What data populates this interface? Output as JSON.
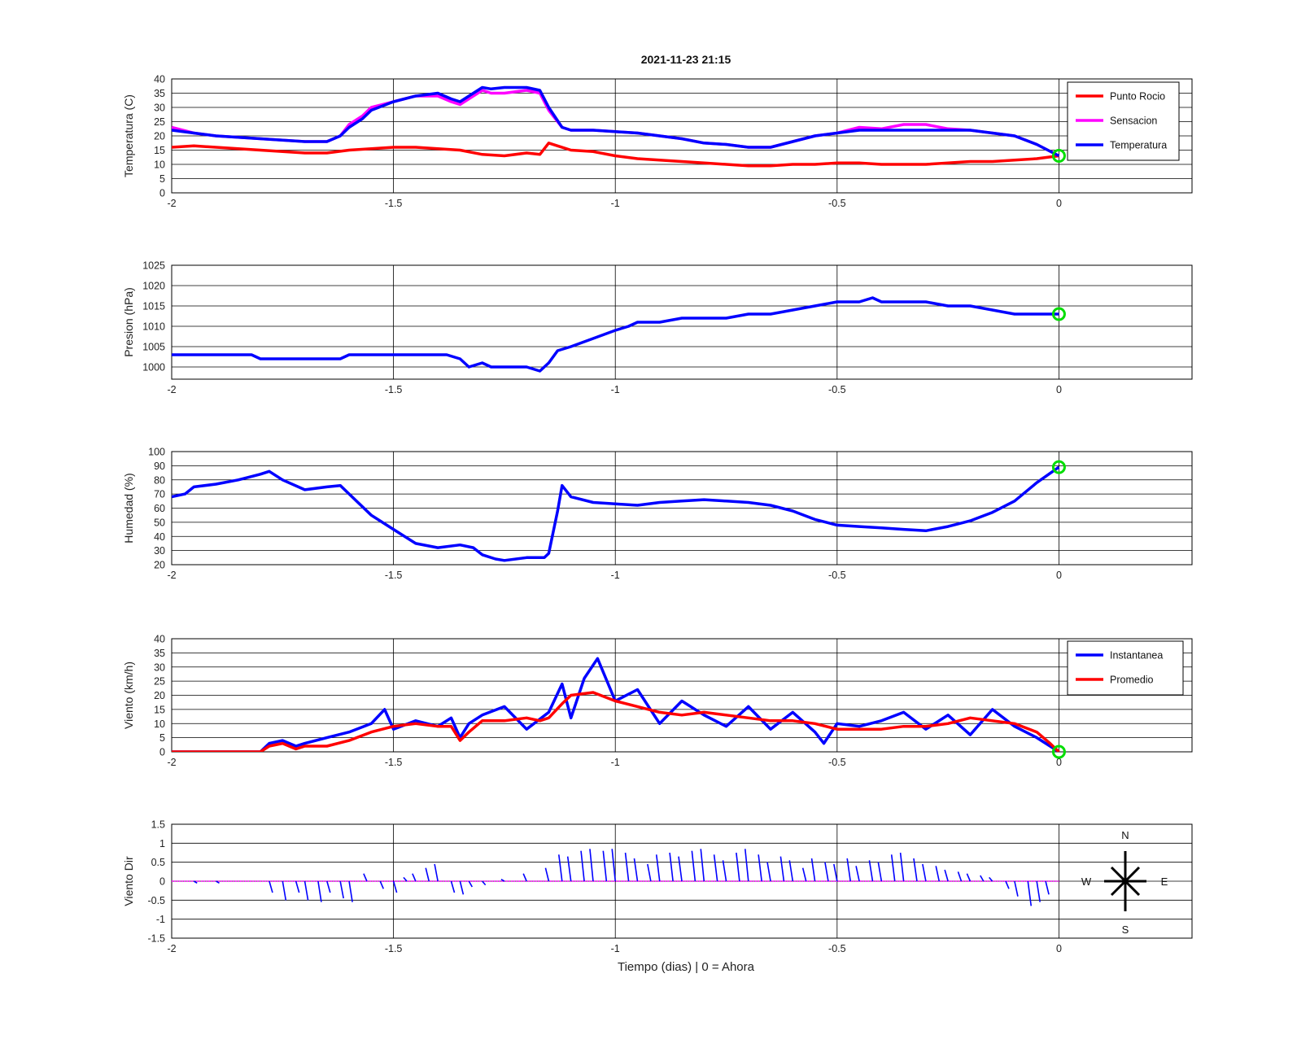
{
  "figure": {
    "title": "2021-11-23 21:15",
    "xlabel": "Tiempo (dias) | 0 = Ahora"
  },
  "colors": {
    "blue": "#0000ff",
    "red": "#ff0000",
    "magenta": "#ff00ff",
    "green": "#00dd00",
    "grid": "#000000"
  },
  "chart_data": [
    {
      "type": "line",
      "ylabel": "Temperatura (C)",
      "xlim": [
        -2,
        0.3
      ],
      "ylim": [
        0,
        40
      ],
      "xticks": [
        -2,
        -1.5,
        -1,
        -0.5,
        0
      ],
      "yticks": [
        0,
        5,
        10,
        15,
        20,
        25,
        30,
        35,
        40
      ],
      "grid": true,
      "legend_position": "top-right",
      "current_marker": {
        "x": 0,
        "y": 13
      },
      "series": [
        {
          "name": "Punto Rocio",
          "color": "#ff0000",
          "x": [
            -2,
            -1.95,
            -1.9,
            -1.85,
            -1.8,
            -1.75,
            -1.7,
            -1.65,
            -1.6,
            -1.55,
            -1.5,
            -1.45,
            -1.4,
            -1.35,
            -1.3,
            -1.25,
            -1.2,
            -1.17,
            -1.15,
            -1.13,
            -1.1,
            -1.05,
            -1.0,
            -0.95,
            -0.9,
            -0.85,
            -0.8,
            -0.75,
            -0.7,
            -0.65,
            -0.6,
            -0.55,
            -0.5,
            -0.45,
            -0.4,
            -0.35,
            -0.3,
            -0.25,
            -0.2,
            -0.15,
            -0.1,
            -0.05,
            0
          ],
          "y": [
            16,
            16.5,
            16,
            15.5,
            15,
            14.5,
            14,
            14,
            15,
            15.5,
            16,
            16,
            15.5,
            15,
            13.5,
            13,
            14,
            13.5,
            17.5,
            16.5,
            15,
            14.5,
            13,
            12,
            11.5,
            11,
            10.5,
            10,
            9.5,
            9.5,
            10,
            10,
            10.5,
            10.5,
            10,
            10,
            10,
            10.5,
            11,
            11,
            11.5,
            12,
            13
          ]
        },
        {
          "name": "Sensacion",
          "color": "#ff00ff",
          "x": [
            -2,
            -1.95,
            -1.9,
            -1.85,
            -1.8,
            -1.75,
            -1.7,
            -1.65,
            -1.62,
            -1.6,
            -1.57,
            -1.55,
            -1.5,
            -1.45,
            -1.4,
            -1.37,
            -1.35,
            -1.33,
            -1.3,
            -1.28,
            -1.25,
            -1.2,
            -1.17,
            -1.15,
            -1.12,
            -1.1,
            -1.05,
            -1.0,
            -0.95,
            -0.9,
            -0.85,
            -0.8,
            -0.75,
            -0.7,
            -0.65,
            -0.6,
            -0.55,
            -0.5,
            -0.45,
            -0.4,
            -0.35,
            -0.3,
            -0.25,
            -0.2,
            -0.15,
            -0.1,
            -0.05,
            0
          ],
          "y": [
            23,
            21,
            20,
            19.5,
            19,
            18.5,
            18,
            18,
            20,
            24,
            27,
            30,
            32,
            34,
            34,
            32,
            31,
            33,
            36,
            35,
            35,
            36,
            35,
            29,
            23,
            22,
            22,
            21.5,
            21,
            20,
            19,
            17.5,
            17,
            16,
            16,
            18,
            20,
            21,
            23,
            22.5,
            24,
            24,
            22.5,
            22,
            21,
            20,
            17,
            13
          ]
        },
        {
          "name": "Temperatura",
          "color": "#0000ff",
          "x": [
            -2,
            -1.95,
            -1.9,
            -1.85,
            -1.8,
            -1.75,
            -1.7,
            -1.65,
            -1.62,
            -1.6,
            -1.57,
            -1.55,
            -1.5,
            -1.45,
            -1.4,
            -1.37,
            -1.35,
            -1.33,
            -1.3,
            -1.28,
            -1.25,
            -1.2,
            -1.17,
            -1.15,
            -1.12,
            -1.1,
            -1.05,
            -1.0,
            -0.95,
            -0.9,
            -0.85,
            -0.8,
            -0.75,
            -0.7,
            -0.65,
            -0.6,
            -0.55,
            -0.5,
            -0.45,
            -0.4,
            -0.35,
            -0.3,
            -0.25,
            -0.2,
            -0.15,
            -0.1,
            -0.05,
            0
          ],
          "y": [
            22,
            21,
            20,
            19.5,
            19,
            18.5,
            18,
            18,
            20,
            23,
            26,
            29,
            32,
            34,
            35,
            33,
            32,
            34,
            37,
            36.5,
            37,
            37,
            36,
            30,
            23,
            22,
            22,
            21.5,
            21,
            20,
            19,
            17.5,
            17,
            16,
            16,
            18,
            20,
            21,
            22,
            22,
            22,
            22,
            22,
            22,
            21,
            20,
            17,
            13
          ]
        }
      ]
    },
    {
      "type": "line",
      "ylabel": "Presion (hPa)",
      "xlim": [
        -2,
        0.3
      ],
      "ylim": [
        997,
        1025
      ],
      "xticks": [
        -2,
        -1.5,
        -1,
        -0.5,
        0
      ],
      "yticks": [
        1000,
        1005,
        1010,
        1015,
        1020,
        1025
      ],
      "grid": true,
      "current_marker": {
        "x": 0,
        "y": 1013
      },
      "series": [
        {
          "name": "",
          "color": "#0000ff",
          "x": [
            -2,
            -1.9,
            -1.82,
            -1.8,
            -1.7,
            -1.62,
            -1.6,
            -1.52,
            -1.5,
            -1.45,
            -1.4,
            -1.38,
            -1.35,
            -1.33,
            -1.3,
            -1.28,
            -1.25,
            -1.2,
            -1.17,
            -1.15,
            -1.13,
            -1.1,
            -1.05,
            -1.0,
            -0.97,
            -0.95,
            -0.9,
            -0.85,
            -0.8,
            -0.75,
            -0.7,
            -0.65,
            -0.6,
            -0.55,
            -0.5,
            -0.45,
            -0.42,
            -0.4,
            -0.35,
            -0.3,
            -0.25,
            -0.2,
            -0.15,
            -0.1,
            -0.05,
            0
          ],
          "y": [
            1003,
            1003,
            1003,
            1002,
            1002,
            1002,
            1003,
            1003,
            1003,
            1003,
            1003,
            1003,
            1002,
            1000,
            1001,
            1000,
            1000,
            1000,
            999,
            1001,
            1004,
            1005,
            1007,
            1009,
            1010,
            1011,
            1011,
            1012,
            1012,
            1012,
            1013,
            1013,
            1014,
            1015,
            1016,
            1016,
            1017,
            1016,
            1016,
            1016,
            1015,
            1015,
            1014,
            1013,
            1013,
            1013
          ]
        }
      ]
    },
    {
      "type": "line",
      "ylabel": "Humedad (%)",
      "xlim": [
        -2,
        0.3
      ],
      "ylim": [
        20,
        100
      ],
      "xticks": [
        -2,
        -1.5,
        -1,
        -0.5,
        0
      ],
      "yticks": [
        20,
        30,
        40,
        50,
        60,
        70,
        80,
        90,
        100
      ],
      "grid": true,
      "current_marker": {
        "x": 0,
        "y": 89
      },
      "series": [
        {
          "name": "",
          "color": "#0000ff",
          "x": [
            -2,
            -1.97,
            -1.95,
            -1.9,
            -1.85,
            -1.8,
            -1.78,
            -1.75,
            -1.7,
            -1.65,
            -1.62,
            -1.6,
            -1.55,
            -1.5,
            -1.45,
            -1.4,
            -1.35,
            -1.32,
            -1.3,
            -1.27,
            -1.25,
            -1.2,
            -1.16,
            -1.15,
            -1.13,
            -1.12,
            -1.1,
            -1.05,
            -1.0,
            -0.95,
            -0.9,
            -0.85,
            -0.8,
            -0.75,
            -0.7,
            -0.65,
            -0.6,
            -0.55,
            -0.5,
            -0.45,
            -0.4,
            -0.35,
            -0.3,
            -0.25,
            -0.2,
            -0.15,
            -0.1,
            -0.05,
            0
          ],
          "y": [
            68,
            70,
            75,
            77,
            80,
            84,
            86,
            80,
            73,
            75,
            76,
            70,
            55,
            45,
            35,
            32,
            34,
            32,
            27,
            24,
            23,
            25,
            25,
            28,
            58,
            76,
            68,
            64,
            63,
            62,
            64,
            65,
            66,
            65,
            64,
            62,
            58,
            52,
            48,
            47,
            46,
            45,
            44,
            47,
            51,
            57,
            65,
            78,
            89
          ]
        }
      ]
    },
    {
      "type": "line",
      "ylabel": "Viento (km/h)",
      "xlim": [
        -2,
        0.3
      ],
      "ylim": [
        0,
        40
      ],
      "xticks": [
        -2,
        -1.5,
        -1,
        -0.5,
        0
      ],
      "yticks": [
        0,
        5,
        10,
        15,
        20,
        25,
        30,
        35,
        40
      ],
      "grid": true,
      "legend_position": "top-right",
      "current_marker": {
        "x": 0,
        "y": 0
      },
      "series": [
        {
          "name": "Instantanea",
          "color": "#0000ff",
          "x": [
            -2,
            -1.9,
            -1.8,
            -1.78,
            -1.75,
            -1.72,
            -1.7,
            -1.65,
            -1.6,
            -1.55,
            -1.52,
            -1.5,
            -1.45,
            -1.4,
            -1.37,
            -1.35,
            -1.33,
            -1.3,
            -1.25,
            -1.2,
            -1.15,
            -1.12,
            -1.1,
            -1.07,
            -1.04,
            -1.0,
            -0.95,
            -0.9,
            -0.85,
            -0.8,
            -0.75,
            -0.7,
            -0.65,
            -0.6,
            -0.55,
            -0.53,
            -0.5,
            -0.45,
            -0.4,
            -0.35,
            -0.3,
            -0.25,
            -0.2,
            -0.15,
            -0.1,
            -0.05,
            -0.02,
            0
          ],
          "y": [
            0,
            0,
            0,
            3,
            4,
            2,
            3,
            5,
            7,
            10,
            15,
            8,
            11,
            9,
            12,
            5,
            10,
            13,
            16,
            8,
            14,
            24,
            12,
            26,
            33,
            18,
            22,
            10,
            18,
            13,
            9,
            16,
            8,
            14,
            7,
            3,
            10,
            9,
            11,
            14,
            8,
            13,
            6,
            15,
            9,
            5,
            2,
            0
          ]
        },
        {
          "name": "Promedio",
          "color": "#ff0000",
          "x": [
            -2,
            -1.9,
            -1.8,
            -1.78,
            -1.75,
            -1.72,
            -1.7,
            -1.65,
            -1.6,
            -1.55,
            -1.5,
            -1.45,
            -1.4,
            -1.37,
            -1.35,
            -1.33,
            -1.3,
            -1.25,
            -1.2,
            -1.17,
            -1.15,
            -1.12,
            -1.1,
            -1.05,
            -1.0,
            -0.95,
            -0.9,
            -0.85,
            -0.8,
            -0.75,
            -0.7,
            -0.65,
            -0.6,
            -0.55,
            -0.5,
            -0.45,
            -0.4,
            -0.35,
            -0.3,
            -0.25,
            -0.2,
            -0.15,
            -0.1,
            -0.05,
            -0.02,
            0
          ],
          "y": [
            0,
            0,
            0,
            2,
            3,
            1,
            2,
            2,
            4,
            7,
            9,
            10,
            9,
            9,
            4,
            7,
            11,
            11,
            12,
            11,
            12,
            17,
            20,
            21,
            18,
            16,
            14,
            13,
            14,
            13,
            12,
            11,
            11,
            10,
            8,
            8,
            8,
            9,
            9,
            10,
            12,
            11,
            10,
            7,
            3,
            0
          ]
        }
      ]
    },
    {
      "type": "line",
      "ylabel": "Viento Dir",
      "xlim": [
        -2,
        0.3
      ],
      "ylim": [
        -1.5,
        1.5
      ],
      "xticks": [
        -2,
        -1.5,
        -1,
        -0.5,
        0
      ],
      "yticks": [
        -1.5,
        -1,
        -0.5,
        0,
        0.5,
        1,
        1.5
      ],
      "grid": true,
      "compass_labels": {
        "n": "N",
        "s": "S",
        "e": "E",
        "w": "W"
      },
      "series": [
        {
          "name": "",
          "color": "#0000ff",
          "x": [
            -1.95,
            -1.9,
            -1.78,
            -1.75,
            -1.72,
            -1.7,
            -1.67,
            -1.65,
            -1.62,
            -1.6,
            -1.56,
            -1.53,
            -1.5,
            -1.47,
            -1.45,
            -1.42,
            -1.4,
            -1.37,
            -1.35,
            -1.33,
            -1.3,
            -1.25,
            -1.2,
            -1.15,
            -1.12,
            -1.1,
            -1.07,
            -1.05,
            -1.02,
            -1.0,
            -0.97,
            -0.95,
            -0.92,
            -0.9,
            -0.87,
            -0.85,
            -0.82,
            -0.8,
            -0.77,
            -0.75,
            -0.72,
            -0.7,
            -0.67,
            -0.65,
            -0.62,
            -0.6,
            -0.57,
            -0.55,
            -0.52,
            -0.5,
            -0.47,
            -0.45,
            -0.42,
            -0.4,
            -0.37,
            -0.35,
            -0.32,
            -0.3,
            -0.27,
            -0.25,
            -0.22,
            -0.2,
            -0.17,
            -0.15,
            -0.12,
            -0.1,
            -0.07,
            -0.05,
            -0.03
          ],
          "y": [
            -0.05,
            -0.05,
            -0.3,
            -0.5,
            -0.3,
            -0.5,
            -0.55,
            -0.3,
            -0.45,
            -0.55,
            0.2,
            -0.2,
            -0.3,
            0.1,
            0.2,
            0.35,
            0.45,
            -0.3,
            -0.35,
            -0.15,
            -0.1,
            0.05,
            0.2,
            0.35,
            0.7,
            0.65,
            0.8,
            0.85,
            0.8,
            0.85,
            0.75,
            0.6,
            0.45,
            0.7,
            0.75,
            0.65,
            0.8,
            0.85,
            0.7,
            0.55,
            0.75,
            0.85,
            0.7,
            0.5,
            0.65,
            0.55,
            0.35,
            0.6,
            0.5,
            0.45,
            0.6,
            0.4,
            0.55,
            0.5,
            0.7,
            0.75,
            0.6,
            0.45,
            0.4,
            0.3,
            0.25,
            0.2,
            0.15,
            0.1,
            -0.2,
            -0.4,
            -0.65,
            -0.55,
            -0.35
          ]
        }
      ]
    }
  ]
}
